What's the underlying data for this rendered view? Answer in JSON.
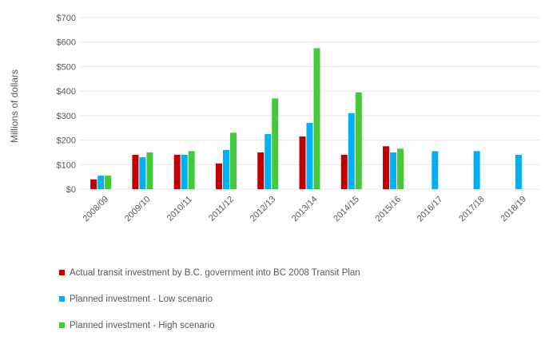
{
  "chart_data": {
    "type": "bar",
    "ylabel": "Millions of dollars",
    "ylim": [
      0,
      700
    ],
    "yticks": [
      "$0",
      "$100",
      "$200",
      "$300",
      "$400",
      "$500",
      "$600",
      "$700"
    ],
    "categories": [
      "2008/09",
      "2009/10",
      "2010/11",
      "2011/12",
      "2012/13",
      "2013/14",
      "2014/15",
      "2015/16",
      "2016/17",
      "2017/18",
      "2018/19"
    ],
    "series": [
      {
        "name": "Actual transit investment by B.C. government into BC 2008 Transit Plan",
        "color": "#c00000",
        "values": [
          40,
          140,
          140,
          105,
          150,
          215,
          140,
          175,
          null,
          null,
          null
        ]
      },
      {
        "name": "Planned investment - Low scenario",
        "color": "#00b0f0",
        "values": [
          55,
          130,
          140,
          160,
          225,
          270,
          310,
          150,
          155,
          155,
          140
        ]
      },
      {
        "name": "Planned investment - High scenario",
        "color": "#44c93a",
        "values": [
          55,
          150,
          155,
          230,
          370,
          575,
          395,
          165,
          null,
          null,
          null
        ]
      }
    ],
    "grid": true,
    "legend_position": "bottom"
  }
}
